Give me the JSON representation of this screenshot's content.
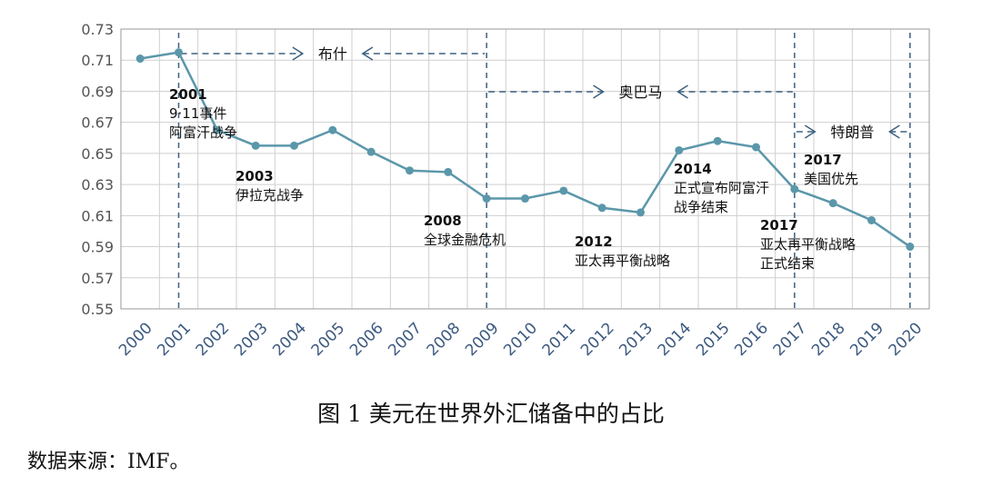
{
  "chart_data": {
    "type": "line",
    "title": "",
    "xlabel": "",
    "ylabel": "",
    "x": [
      "2000",
      "2001",
      "2002",
      "2003",
      "2004",
      "2005",
      "2006",
      "2007",
      "2008",
      "2009",
      "2010",
      "2011",
      "2012",
      "2013",
      "2014",
      "2015",
      "2016",
      "2017",
      "2018",
      "2019",
      "2020"
    ],
    "values": [
      0.711,
      0.715,
      0.665,
      0.655,
      0.655,
      0.665,
      0.651,
      0.639,
      0.638,
      0.621,
      0.621,
      0.626,
      0.615,
      0.612,
      0.652,
      0.658,
      0.654,
      0.627,
      0.618,
      0.607,
      0.59
    ],
    "ylim": [
      0.55,
      0.73
    ],
    "yticks": [
      "0.55",
      "0.57",
      "0.59",
      "0.61",
      "0.63",
      "0.65",
      "0.67",
      "0.69",
      "0.71",
      "0.73"
    ],
    "grid": true,
    "legend": "none",
    "line_color": "#5b97aa",
    "eras": [
      {
        "name": "布什",
        "start": "2001",
        "end": "2009"
      },
      {
        "name": "奥巴马",
        "start": "2009",
        "end": "2017"
      },
      {
        "name": "特朗普",
        "start": "2017",
        "end": "2020"
      }
    ],
    "annotations": [
      {
        "year": "2001",
        "lines": [
          "2001",
          "9·11事件",
          "阿富汗战争"
        ]
      },
      {
        "year": "2003",
        "lines": [
          "2003",
          "伊拉克战争"
        ]
      },
      {
        "year": "2008",
        "lines": [
          "2008",
          "全球金融危机"
        ]
      },
      {
        "year": "2012",
        "lines": [
          "2012",
          "亚太再平衡战略"
        ]
      },
      {
        "year": "2014",
        "lines": [
          "2014",
          "正式宣布阿富汗",
          "战争结束"
        ]
      },
      {
        "year": "2017",
        "lines": [
          "2017",
          "美国优先"
        ]
      },
      {
        "year": "2017",
        "lines": [
          "2017",
          "亚太再平衡战略",
          "正式结束"
        ]
      }
    ]
  },
  "caption": "图 1 美元在世界外汇储备中的占比",
  "source": "数据来源：IMF。"
}
